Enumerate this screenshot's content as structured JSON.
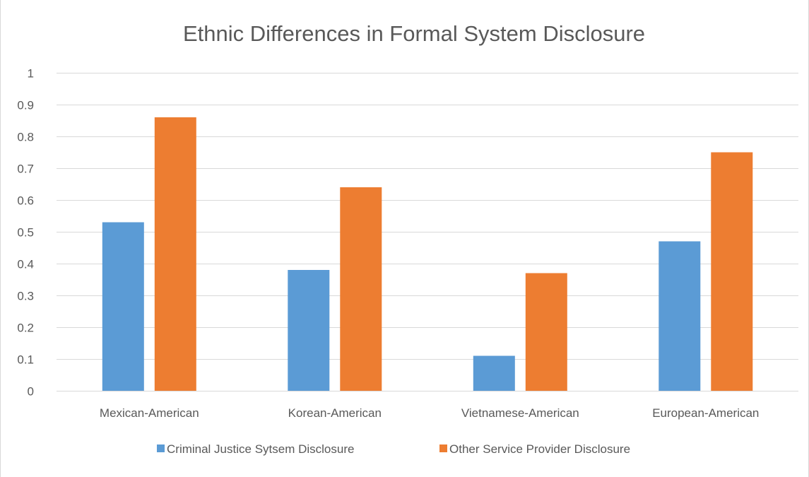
{
  "chart_data": {
    "type": "bar",
    "title": "Ethnic Differences in Formal System Disclosure",
    "xlabel": "",
    "ylabel": "",
    "categories": [
      "Mexican-American",
      "Korean-American",
      "Vietnamese-American",
      "European-American"
    ],
    "series": [
      {
        "name": "Criminal Justice Sytsem Disclosure",
        "color": "#5B9BD5",
        "values": [
          0.53,
          0.38,
          0.11,
          0.47
        ]
      },
      {
        "name": "Other Service Provider Disclosure",
        "color": "#ED7D31",
        "values": [
          0.86,
          0.64,
          0.37,
          0.75
        ]
      }
    ],
    "ylim": [
      0,
      1
    ],
    "yticks": [
      "0",
      "0.1",
      "0.2",
      "0.3",
      "0.4",
      "0.5",
      "0.6",
      "0.7",
      "0.8",
      "0.9",
      "1"
    ],
    "grid": true,
    "legend": "bottom"
  }
}
